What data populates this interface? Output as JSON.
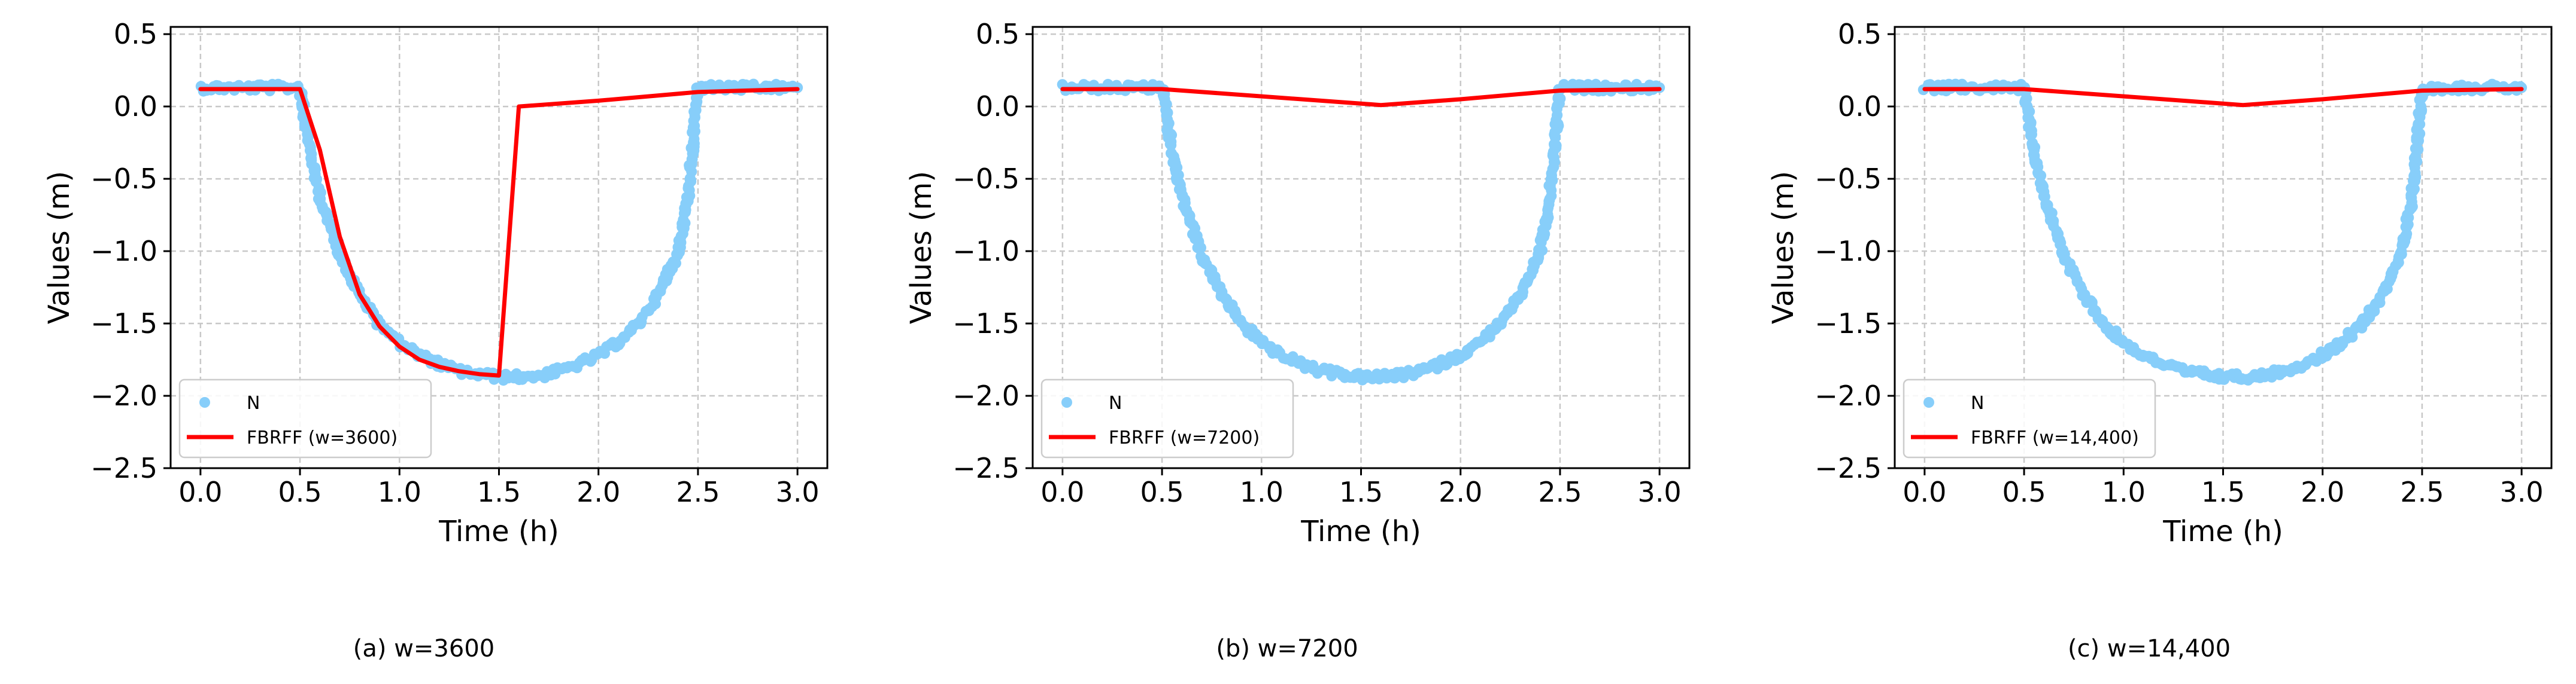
{
  "chart_data": [
    {
      "type": "scatter+line",
      "caption": "(a) w=3600",
      "xlabel": "Time (h)",
      "ylabel": "Values (m)",
      "xlim": [
        -0.15,
        3.15
      ],
      "ylim": [
        -2.5,
        0.55
      ],
      "xticks": [
        0.0,
        0.5,
        1.0,
        1.5,
        2.0,
        2.5,
        3.0
      ],
      "xtick_labels": [
        "0.0",
        "0.5",
        "1.0",
        "1.5",
        "2.0",
        "2.5",
        "3.0"
      ],
      "yticks": [
        0.5,
        0.0,
        -0.5,
        -1.0,
        -1.5,
        -2.0,
        -2.5
      ],
      "ytick_labels": [
        "0.5",
        "0.0",
        "−0.5",
        "−1.0",
        "−1.5",
        "−2.0",
        "−2.5"
      ],
      "grid": true,
      "legend_position": "lower-left",
      "series": [
        {
          "name": "N",
          "kind": "scatter",
          "color": "#87CEFA",
          "points": [
            [
              0.0,
              0.13
            ],
            [
              0.1,
              0.13
            ],
            [
              0.2,
              0.13
            ],
            [
              0.3,
              0.13
            ],
            [
              0.4,
              0.13
            ],
            [
              0.5,
              0.13
            ],
            [
              0.55,
              -0.3
            ],
            [
              0.6,
              -0.62
            ],
            [
              0.7,
              -1.02
            ],
            [
              0.8,
              -1.3
            ],
            [
              0.9,
              -1.5
            ],
            [
              1.0,
              -1.63
            ],
            [
              1.1,
              -1.72
            ],
            [
              1.2,
              -1.78
            ],
            [
              1.3,
              -1.83
            ],
            [
              1.4,
              -1.85
            ],
            [
              1.5,
              -1.87
            ],
            [
              1.6,
              -1.87
            ],
            [
              1.7,
              -1.86
            ],
            [
              1.8,
              -1.83
            ],
            [
              1.9,
              -1.78
            ],
            [
              2.0,
              -1.72
            ],
            [
              2.1,
              -1.63
            ],
            [
              2.2,
              -1.5
            ],
            [
              2.3,
              -1.3
            ],
            [
              2.4,
              -1.0
            ],
            [
              2.45,
              -0.62
            ],
            [
              2.5,
              0.13
            ],
            [
              2.6,
              0.13
            ],
            [
              2.7,
              0.13
            ],
            [
              2.8,
              0.13
            ],
            [
              2.9,
              0.13
            ],
            [
              3.0,
              0.13
            ]
          ]
        },
        {
          "name": "FBRFF (w=3600)",
          "kind": "line",
          "color": "#FF0000",
          "points": [
            [
              0.0,
              0.12
            ],
            [
              0.5,
              0.12
            ],
            [
              0.6,
              -0.3
            ],
            [
              0.7,
              -0.9
            ],
            [
              0.8,
              -1.3
            ],
            [
              0.9,
              -1.52
            ],
            [
              1.0,
              -1.66
            ],
            [
              1.1,
              -1.75
            ],
            [
              1.2,
              -1.8
            ],
            [
              1.3,
              -1.83
            ],
            [
              1.4,
              -1.85
            ],
            [
              1.5,
              -1.86
            ],
            [
              1.6,
              0.0
            ],
            [
              2.0,
              0.04
            ],
            [
              2.5,
              0.1
            ],
            [
              3.0,
              0.12
            ]
          ]
        }
      ]
    },
    {
      "type": "scatter+line",
      "caption": "(b) w=7200",
      "xlabel": "Time (h)",
      "ylabel": "Values (m)",
      "xlim": [
        -0.15,
        3.15
      ],
      "ylim": [
        -2.5,
        0.55
      ],
      "xticks": [
        0.0,
        0.5,
        1.0,
        1.5,
        2.0,
        2.5,
        3.0
      ],
      "xtick_labels": [
        "0.0",
        "0.5",
        "1.0",
        "1.5",
        "2.0",
        "2.5",
        "3.0"
      ],
      "yticks": [
        0.5,
        0.0,
        -0.5,
        -1.0,
        -1.5,
        -2.0,
        -2.5
      ],
      "ytick_labels": [
        "0.5",
        "0.0",
        "−0.5",
        "−1.0",
        "−1.5",
        "−2.0",
        "−2.5"
      ],
      "grid": true,
      "legend_position": "lower-left",
      "series": [
        {
          "name": "N",
          "kind": "scatter",
          "color": "#87CEFA",
          "points": [
            [
              0.0,
              0.13
            ],
            [
              0.1,
              0.13
            ],
            [
              0.2,
              0.13
            ],
            [
              0.3,
              0.13
            ],
            [
              0.4,
              0.13
            ],
            [
              0.5,
              0.13
            ],
            [
              0.55,
              -0.3
            ],
            [
              0.6,
              -0.62
            ],
            [
              0.7,
              -1.02
            ],
            [
              0.8,
              -1.3
            ],
            [
              0.9,
              -1.5
            ],
            [
              1.0,
              -1.63
            ],
            [
              1.1,
              -1.72
            ],
            [
              1.2,
              -1.78
            ],
            [
              1.3,
              -1.83
            ],
            [
              1.4,
              -1.85
            ],
            [
              1.5,
              -1.87
            ],
            [
              1.6,
              -1.87
            ],
            [
              1.7,
              -1.86
            ],
            [
              1.8,
              -1.83
            ],
            [
              1.9,
              -1.78
            ],
            [
              2.0,
              -1.72
            ],
            [
              2.1,
              -1.63
            ],
            [
              2.2,
              -1.5
            ],
            [
              2.3,
              -1.3
            ],
            [
              2.4,
              -1.0
            ],
            [
              2.45,
              -0.62
            ],
            [
              2.5,
              0.13
            ],
            [
              2.6,
              0.13
            ],
            [
              2.7,
              0.13
            ],
            [
              2.8,
              0.13
            ],
            [
              2.9,
              0.13
            ],
            [
              3.0,
              0.13
            ]
          ]
        },
        {
          "name": "FBRFF (w=7200)",
          "kind": "line",
          "color": "#FF0000",
          "points": [
            [
              0.0,
              0.12
            ],
            [
              0.5,
              0.12
            ],
            [
              1.0,
              0.07
            ],
            [
              1.6,
              0.01
            ],
            [
              2.0,
              0.05
            ],
            [
              2.5,
              0.11
            ],
            [
              3.0,
              0.12
            ]
          ]
        }
      ]
    },
    {
      "type": "scatter+line",
      "caption": "(c) w=14,400",
      "xlabel": "Time (h)",
      "ylabel": "Values (m)",
      "xlim": [
        -0.15,
        3.15
      ],
      "ylim": [
        -2.5,
        0.55
      ],
      "xticks": [
        0.0,
        0.5,
        1.0,
        1.5,
        2.0,
        2.5,
        3.0
      ],
      "xtick_labels": [
        "0.0",
        "0.5",
        "1.0",
        "1.5",
        "2.0",
        "2.5",
        "3.0"
      ],
      "yticks": [
        0.5,
        0.0,
        -0.5,
        -1.0,
        -1.5,
        -2.0,
        -2.5
      ],
      "ytick_labels": [
        "0.5",
        "0.0",
        "−0.5",
        "−1.0",
        "−1.5",
        "−2.0",
        "−2.5"
      ],
      "grid": true,
      "legend_position": "lower-left",
      "series": [
        {
          "name": "N",
          "kind": "scatter",
          "color": "#87CEFA",
          "points": [
            [
              0.0,
              0.13
            ],
            [
              0.1,
              0.13
            ],
            [
              0.2,
              0.13
            ],
            [
              0.3,
              0.13
            ],
            [
              0.4,
              0.13
            ],
            [
              0.5,
              0.13
            ],
            [
              0.55,
              -0.3
            ],
            [
              0.6,
              -0.62
            ],
            [
              0.7,
              -1.02
            ],
            [
              0.8,
              -1.3
            ],
            [
              0.9,
              -1.5
            ],
            [
              1.0,
              -1.63
            ],
            [
              1.1,
              -1.72
            ],
            [
              1.2,
              -1.78
            ],
            [
              1.3,
              -1.83
            ],
            [
              1.4,
              -1.85
            ],
            [
              1.5,
              -1.87
            ],
            [
              1.6,
              -1.87
            ],
            [
              1.7,
              -1.86
            ],
            [
              1.8,
              -1.83
            ],
            [
              1.9,
              -1.78
            ],
            [
              2.0,
              -1.72
            ],
            [
              2.1,
              -1.63
            ],
            [
              2.2,
              -1.5
            ],
            [
              2.3,
              -1.3
            ],
            [
              2.4,
              -1.0
            ],
            [
              2.45,
              -0.62
            ],
            [
              2.5,
              0.13
            ],
            [
              2.6,
              0.13
            ],
            [
              2.7,
              0.13
            ],
            [
              2.8,
              0.13
            ],
            [
              2.9,
              0.13
            ],
            [
              3.0,
              0.13
            ]
          ]
        },
        {
          "name": "FBRFF (w=14,400)",
          "kind": "line",
          "color": "#FF0000",
          "points": [
            [
              0.0,
              0.12
            ],
            [
              0.5,
              0.12
            ],
            [
              1.0,
              0.07
            ],
            [
              1.6,
              0.01
            ],
            [
              2.0,
              0.05
            ],
            [
              2.5,
              0.11
            ],
            [
              3.0,
              0.12
            ]
          ]
        }
      ]
    }
  ]
}
